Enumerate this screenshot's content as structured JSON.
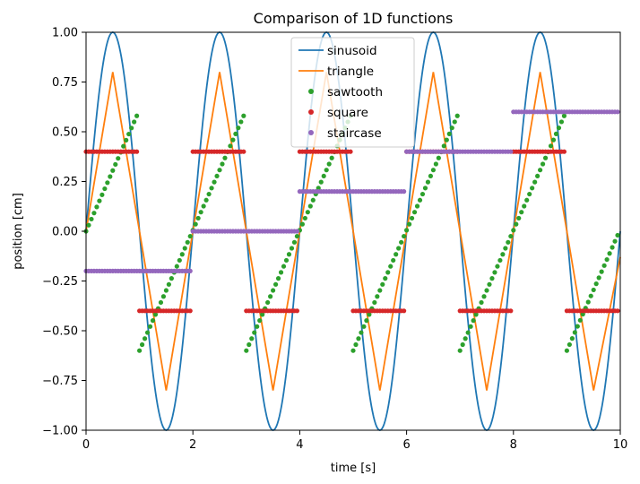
{
  "chart_data": {
    "type": "line",
    "title": "Comparison of 1D functions",
    "xlabel": "time [s]",
    "ylabel": "position [cm]",
    "xlim": [
      0,
      10
    ],
    "ylim": [
      -1.0,
      1.0
    ],
    "xticks": [
      0,
      2,
      4,
      6,
      8,
      10
    ],
    "xtick_labels": [
      "0",
      "2",
      "4",
      "6",
      "8",
      "10"
    ],
    "yticks": [
      -1.0,
      -0.75,
      -0.5,
      -0.25,
      0.0,
      0.25,
      0.5,
      0.75,
      1.0
    ],
    "ytick_labels": [
      "−1.00",
      "−0.75",
      "−0.50",
      "−0.25",
      "0.00",
      "0.25",
      "0.50",
      "0.75",
      "1.00"
    ],
    "grid": false,
    "legend_position": "top-center",
    "series": [
      {
        "name": "sinusoid",
        "style": "line",
        "color": "#1f77b4",
        "x": [
          0,
          0.5,
          1,
          1.5,
          2,
          2.5,
          3,
          3.5,
          4,
          4.5,
          5,
          5.5,
          6,
          6.5,
          7,
          7.5,
          8,
          8.5,
          9,
          9.5,
          10
        ],
        "y": [
          0,
          1,
          0,
          -1,
          0,
          1,
          0,
          -1,
          0,
          1,
          0,
          -1,
          0,
          1,
          0,
          -1,
          0,
          1,
          0,
          -1,
          0
        ]
      },
      {
        "name": "triangle",
        "style": "line",
        "color": "#ff7f0e",
        "x": [
          0,
          0.5,
          1.5,
          2.5,
          3.5,
          4.5,
          5.5,
          6.5,
          7.5,
          8.5,
          9.5,
          10
        ],
        "y": [
          0,
          0.8,
          -0.8,
          0.8,
          -0.8,
          0.8,
          -0.8,
          0.8,
          -0.8,
          0.8,
          -0.8,
          -0.13
        ]
      },
      {
        "name": "sawtooth",
        "style": "points",
        "color": "#2ca02c",
        "segments": [
          {
            "x0": 0,
            "x1": 1,
            "y0": 0.0,
            "y1": 0.58
          },
          {
            "x0": 1,
            "x1": 3,
            "y0": -0.6,
            "y1": 0.58
          },
          {
            "x0": 3,
            "x1": 5,
            "y0": -0.6,
            "y1": 0.58
          },
          {
            "x0": 5,
            "x1": 7,
            "y0": -0.6,
            "y1": 0.58
          },
          {
            "x0": 7,
            "x1": 9,
            "y0": -0.6,
            "y1": 0.58
          },
          {
            "x0": 9,
            "x1": 10,
            "y0": -0.6,
            "y1": -0.02
          }
        ]
      },
      {
        "name": "square",
        "style": "points",
        "color": "#d62728",
        "segments": [
          {
            "x0": 0,
            "x1": 1,
            "y": 0.4
          },
          {
            "x0": 1,
            "x1": 2,
            "y": -0.4
          },
          {
            "x0": 2,
            "x1": 3,
            "y": 0.4
          },
          {
            "x0": 3,
            "x1": 4,
            "y": -0.4
          },
          {
            "x0": 4,
            "x1": 5,
            "y": 0.4
          },
          {
            "x0": 5,
            "x1": 6,
            "y": -0.4
          },
          {
            "x0": 6,
            "x1": 7,
            "y": 0.4
          },
          {
            "x0": 7,
            "x1": 8,
            "y": -0.4
          },
          {
            "x0": 8,
            "x1": 9,
            "y": 0.4
          },
          {
            "x0": 9,
            "x1": 10,
            "y": -0.4
          }
        ]
      },
      {
        "name": "staircase",
        "style": "points",
        "color": "#9467bd",
        "segments": [
          {
            "x0": 0,
            "x1": 2,
            "y": -0.2
          },
          {
            "x0": 2,
            "x1": 4,
            "y": 0.0
          },
          {
            "x0": 4,
            "x1": 6,
            "y": 0.2
          },
          {
            "x0": 6,
            "x1": 8,
            "y": 0.4
          },
          {
            "x0": 8,
            "x1": 10,
            "y": 0.6
          }
        ]
      }
    ]
  }
}
